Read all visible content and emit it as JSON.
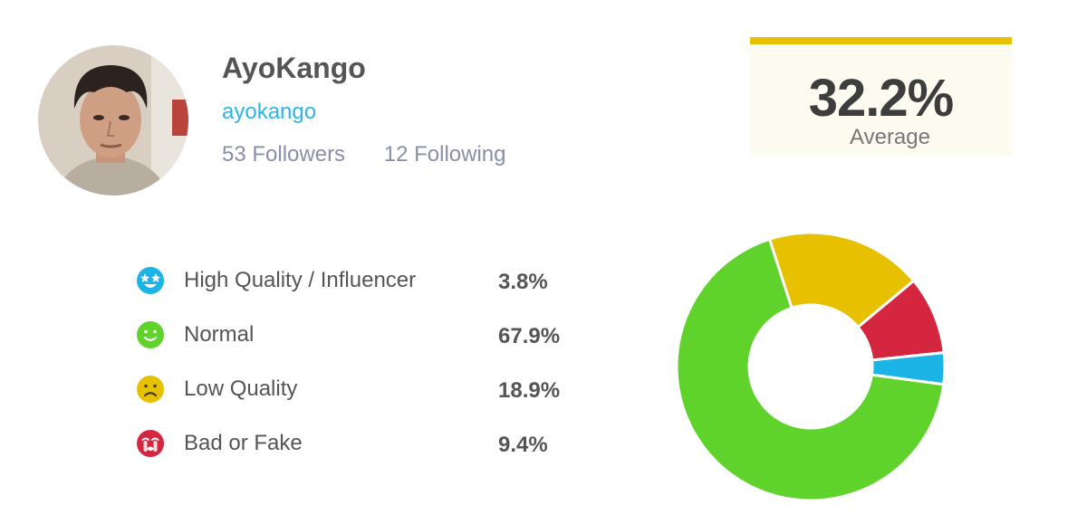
{
  "profile": {
    "display_name": "AyoKango",
    "handle": "ayokango",
    "followers": "53 Followers",
    "following": "12 Following",
    "avatar_icon": "profile-photo"
  },
  "average": {
    "value": "32.2%",
    "label": "Average",
    "accent_color": "#e7c100"
  },
  "chart_data": {
    "type": "pie",
    "categories": [
      "High Quality / Influencer",
      "Normal",
      "Low Quality",
      "Bad or Fake"
    ],
    "values": [
      3.8,
      67.9,
      18.9,
      9.4
    ],
    "colors": [
      "#1bb4e6",
      "#5fd32c",
      "#e7c100",
      "#d4263f"
    ],
    "value_labels": [
      "3.8%",
      "67.9%",
      "18.9%",
      "9.4%"
    ],
    "icons": [
      "star-eyes-face-icon",
      "smiling-face-icon",
      "frowning-face-icon",
      "crying-face-icon"
    ]
  }
}
